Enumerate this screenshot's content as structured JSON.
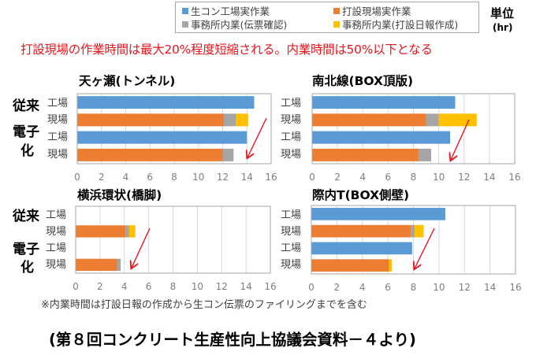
{
  "legend": {
    "items": [
      {
        "label": "生コン工場実作業",
        "color": "#5b9bd5"
      },
      {
        "label": "打設現場実作業",
        "color": "#ed7d31"
      },
      {
        "label": "事務所内業(伝票確認)",
        "color": "#a5a5a5"
      },
      {
        "label": "事務所内業(打設日報作成)",
        "color": "#ffc000"
      }
    ],
    "unit_label": "単位",
    "unit": "(hr)"
  },
  "headline": "打設現場の作業時間は最大20%程度短縮される。内業時間は50%以下となる",
  "group_labels": {
    "conventional": "従来",
    "digital_1": "電子",
    "digital_2": "化"
  },
  "row_labels": [
    "工場",
    "現場",
    "工場",
    "現場"
  ],
  "footnote": "※内業時間は打設日報の作成から生コン伝票のファイリングまでを含む",
  "source": "(第８回コンクリート生産性向上協議会資料－４より)",
  "colors": {
    "arrow": "#e8141c",
    "grid": "#d9d9d9",
    "frame": "#a6a6a6"
  },
  "chart_data": [
    {
      "type": "bar",
      "orientation": "horizontal",
      "stacked": true,
      "title": "天ヶ瀬(トンネル)",
      "categories": [
        "従来 工場",
        "従来 現場",
        "電子化 工場",
        "電子化 現場"
      ],
      "series": [
        {
          "name": "生コン工場実作業",
          "values": [
            14.6,
            0,
            14.0,
            0
          ]
        },
        {
          "name": "打設現場実作業",
          "values": [
            0,
            12.1,
            0,
            12.0
          ]
        },
        {
          "name": "事務所内業(伝票確認)",
          "values": [
            0,
            1.0,
            0,
            0.9
          ]
        },
        {
          "name": "事務所内業(打設日報作成)",
          "values": [
            0,
            1.0,
            0,
            0
          ]
        }
      ],
      "xlim": [
        0,
        16
      ],
      "xticks": [
        "0",
        "2",
        "4",
        "6",
        "8",
        "10",
        "12",
        "14",
        "16"
      ],
      "grid": true
    },
    {
      "type": "bar",
      "orientation": "horizontal",
      "stacked": true,
      "title": "南北線(BOX頂版)",
      "categories": [
        "従来 工場",
        "従来 現場",
        "電子化 工場",
        "電子化 現場"
      ],
      "series": [
        {
          "name": "生コン工場実作業",
          "values": [
            11.3,
            0,
            10.9,
            0
          ]
        },
        {
          "name": "打設現場実作業",
          "values": [
            0,
            9.0,
            0,
            8.4
          ]
        },
        {
          "name": "事務所内業(伝票確認)",
          "values": [
            0,
            1.0,
            0,
            1.0
          ]
        },
        {
          "name": "事務所内業(打設日報作成)",
          "values": [
            0,
            3.0,
            0,
            0
          ]
        }
      ],
      "xlim": [
        0,
        16
      ],
      "xticks": [
        "0",
        "2",
        "4",
        "6",
        "8",
        "10",
        "12",
        "14",
        "16"
      ],
      "grid": true
    },
    {
      "type": "bar",
      "orientation": "horizontal",
      "stacked": true,
      "title": "横浜環状(橋脚)",
      "categories": [
        "従来 工場",
        "従来 現場",
        "電子化 工場",
        "電子化 現場"
      ],
      "series": [
        {
          "name": "生コン工場実作業",
          "values": [
            0,
            0,
            0,
            0
          ]
        },
        {
          "name": "打設現場実作業",
          "values": [
            0,
            4.1,
            0,
            3.4
          ]
        },
        {
          "name": "事務所内業(伝票確認)",
          "values": [
            0,
            0.3,
            0,
            0.3
          ]
        },
        {
          "name": "事務所内業(打設日報作成)",
          "values": [
            0,
            0.5,
            0,
            0
          ]
        }
      ],
      "xlim": [
        0,
        16
      ],
      "xticks": [
        "0",
        "2",
        "4",
        "6",
        "8",
        "10",
        "12",
        "14",
        "16"
      ],
      "grid": true
    },
    {
      "type": "bar",
      "orientation": "horizontal",
      "stacked": true,
      "title": "際内T(BOX側壁)",
      "categories": [
        "従来 工場",
        "従来 現場",
        "電子化 工場",
        "電子化 現場"
      ],
      "series": [
        {
          "name": "生コン工場実作業",
          "values": [
            10.5,
            0,
            7.9,
            0
          ]
        },
        {
          "name": "打設現場実作業",
          "values": [
            0,
            7.8,
            0,
            6.1
          ]
        },
        {
          "name": "事務所内業(伝票確認)",
          "values": [
            0,
            0.3,
            0,
            0
          ]
        },
        {
          "name": "事務所内業(打設日報作成)",
          "values": [
            0,
            0.7,
            0,
            0.2
          ]
        }
      ],
      "xlim": [
        0,
        16
      ],
      "xticks": [
        "0",
        "2",
        "4",
        "6",
        "8",
        "10",
        "12",
        "14",
        "16"
      ],
      "grid": true
    }
  ]
}
